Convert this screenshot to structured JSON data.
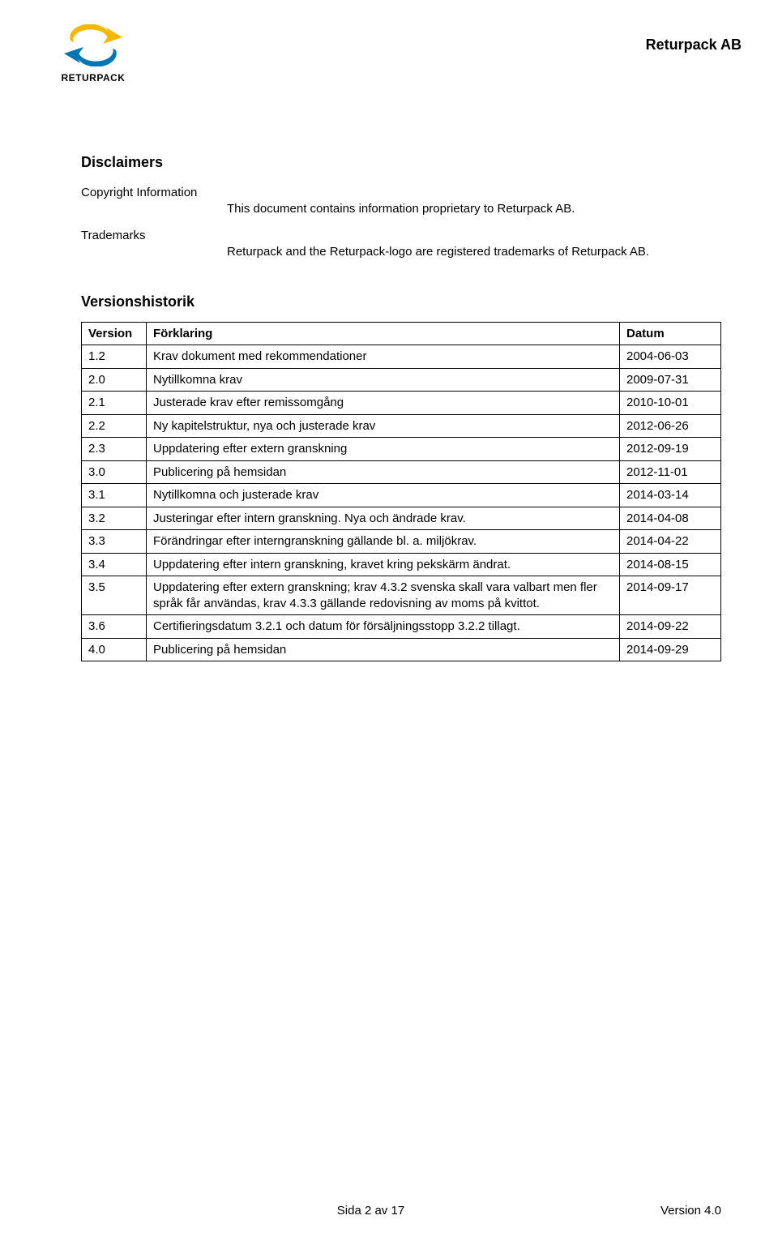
{
  "header": {
    "logo_text": "RETURPACK",
    "company_name": "Returpack AB",
    "logo_colors": {
      "top_arrow": "#f5b800",
      "bottom_arrow": "#0077b3"
    }
  },
  "disclaimers": {
    "title": "Disclaimers",
    "copyright_label": "Copyright Information",
    "copyright_text": "This document contains information proprietary to Returpack AB.",
    "trademarks_label": "Trademarks",
    "trademarks_text": "Returpack and the Returpack-logo are registered trademarks of Returpack AB."
  },
  "version_history": {
    "title": "Versionshistorik",
    "columns": {
      "version": "Version",
      "description": "Förklaring",
      "date": "Datum"
    },
    "rows": [
      {
        "v": "1.2",
        "d": "Krav dokument med rekommendationer",
        "date": "2004-06-03"
      },
      {
        "v": "2.0",
        "d": "Nytillkomna krav",
        "date": "2009-07-31"
      },
      {
        "v": "2.1",
        "d": "Justerade krav efter remissomgång",
        "date": "2010-10-01"
      },
      {
        "v": "2.2",
        "d": "Ny kapitelstruktur, nya och justerade krav",
        "date": "2012-06-26"
      },
      {
        "v": "2.3",
        "d": "Uppdatering efter extern granskning",
        "date": "2012-09-19"
      },
      {
        "v": "3.0",
        "d": "Publicering på hemsidan",
        "date": "2012-11-01"
      },
      {
        "v": "3.1",
        "d": "Nytillkomna och justerade krav",
        "date": "2014-03-14"
      },
      {
        "v": "3.2",
        "d": "Justeringar efter intern granskning. Nya och ändrade krav.",
        "date": "2014-04-08"
      },
      {
        "v": "3.3",
        "d": "Förändringar efter interngranskning gällande bl. a. miljökrav.",
        "date": "2014-04-22"
      },
      {
        "v": "3.4",
        "d": "Uppdatering efter intern granskning, kravet kring pekskärm ändrat.",
        "date": "2014-08-15"
      },
      {
        "v": "3.5",
        "d": "Uppdatering efter extern granskning; krav 4.3.2 svenska skall vara valbart men fler språk får användas, krav 4.3.3 gällande redovisning av moms på kvittot.",
        "date": "2014-09-17"
      },
      {
        "v": "3.6",
        "d": "Certifieringsdatum 3.2.1 och datum för försäljningsstopp 3.2.2 tillagt.",
        "date": "2014-09-22"
      },
      {
        "v": "4.0",
        "d": "Publicering på hemsidan",
        "date": "2014-09-29"
      }
    ]
  },
  "footer": {
    "page": "Sida 2 av 17",
    "version": "Version 4.0"
  }
}
